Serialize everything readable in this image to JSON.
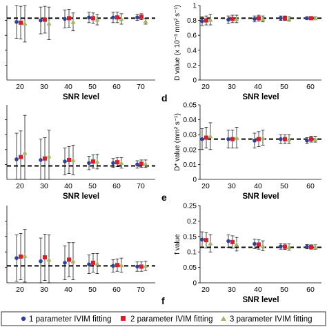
{
  "colors": {
    "series1": "#2e3f9e",
    "series2": "#d81f26",
    "series3": "#a8b66a",
    "axis": "#000000",
    "reference": "#000000"
  },
  "legend": {
    "items": [
      {
        "label": "1 parameter IVIM fitting",
        "marker": "circle",
        "color": "#2e3f9e"
      },
      {
        "label": "2 parameter IVIM fitting",
        "marker": "square",
        "color": "#d81f26"
      },
      {
        "label": "3 parameter IVIM fitting",
        "marker": "triangle",
        "color": "#a8b66a"
      }
    ]
  },
  "chart_data": [
    {
      "type": "scatter",
      "panel_letter": "",
      "xlabel": "SNR level",
      "ylabel": "",
      "ylabel_latex": false,
      "categories": [
        "20",
        "30",
        "40",
        "50",
        "60",
        "70"
      ],
      "ylim": [
        0,
        1
      ],
      "yticks": [],
      "ytick_labels": [],
      "reference_line": 0.83,
      "series": [
        {
          "name": "1 parameter IVIM fitting",
          "values": [
            0.78,
            0.8,
            0.82,
            0.84,
            0.84,
            0.84
          ],
          "err": [
            0.22,
            0.18,
            0.12,
            0.07,
            0.07,
            0.04
          ]
        },
        {
          "name": "2 parameter IVIM fitting",
          "values": [
            0.77,
            0.81,
            0.83,
            0.83,
            0.84,
            0.85
          ],
          "err": [
            0.22,
            0.18,
            0.12,
            0.07,
            0.07,
            0.04
          ]
        },
        {
          "name": "3 parameter IVIM fitting",
          "values": [
            0.76,
            0.76,
            0.78,
            0.81,
            0.82,
            0.79
          ],
          "err": [
            0.25,
            0.22,
            0.12,
            0.07,
            0.07,
            0.04
          ]
        }
      ]
    },
    {
      "type": "scatter",
      "panel_letter": "d",
      "xlabel": "SNR level",
      "ylabel": "D value (x 10⁻³ mm² s⁻¹)",
      "categories": [
        "20",
        "30",
        "40",
        "50",
        "60"
      ],
      "ylim": [
        0,
        1
      ],
      "yticks": [
        0,
        0.2,
        0.4,
        0.6,
        0.8,
        1
      ],
      "ytick_labels": [
        "0",
        "0.2",
        "0.4",
        "0.6",
        "0.8",
        "1"
      ],
      "reference_line": 0.83,
      "series": [
        {
          "name": "1 parameter IVIM fitting",
          "values": [
            0.79,
            0.81,
            0.82,
            0.83,
            0.83
          ],
          "err": [
            0.06,
            0.05,
            0.04,
            0.03,
            0.02
          ]
        },
        {
          "name": "2 parameter IVIM fitting",
          "values": [
            0.8,
            0.82,
            0.83,
            0.83,
            0.83
          ],
          "err": [
            0.06,
            0.05,
            0.04,
            0.03,
            0.02
          ]
        },
        {
          "name": "3 parameter IVIM fitting",
          "values": [
            0.81,
            0.82,
            0.82,
            0.82,
            0.83
          ],
          "err": [
            0.07,
            0.05,
            0.04,
            0.03,
            0.02
          ]
        }
      ]
    },
    {
      "type": "scatter",
      "panel_letter": "",
      "xlabel": "SNR level",
      "ylabel": "",
      "categories": [
        "20",
        "30",
        "40",
        "50",
        "60",
        "70"
      ],
      "ylim": [
        0,
        1
      ],
      "yticks": [],
      "ytick_labels": [],
      "reference_line": 0.18,
      "series": [
        {
          "name": "1 parameter IVIM fitting",
          "values": [
            0.27,
            0.26,
            0.24,
            0.22,
            0.22,
            0.2
          ],
          "err": [
            0.35,
            0.28,
            0.18,
            0.09,
            0.06,
            0.05
          ]
        },
        {
          "name": "2 parameter IVIM fitting",
          "values": [
            0.3,
            0.28,
            0.26,
            0.24,
            0.23,
            0.21
          ],
          "err": [
            0.35,
            0.28,
            0.18,
            0.09,
            0.06,
            0.05
          ]
        },
        {
          "name": "3 parameter IVIM fitting",
          "values": [
            0.36,
            0.31,
            0.26,
            0.24,
            0.22,
            0.21
          ],
          "err": [
            0.5,
            0.35,
            0.2,
            0.1,
            0.07,
            0.05
          ]
        }
      ]
    },
    {
      "type": "scatter",
      "panel_letter": "e",
      "xlabel": "SNR level",
      "ylabel": "D* value (mm² s⁻¹)",
      "categories": [
        "20",
        "30",
        "40",
        "50",
        "60"
      ],
      "ylim": [
        0,
        0.05
      ],
      "yticks": [
        0,
        0.01,
        0.02,
        0.03,
        0.04,
        0.05
      ],
      "ytick_labels": [
        "0",
        "0.01",
        "0.02",
        "0.03",
        "0.04",
        "0.05"
      ],
      "reference_line": 0.027,
      "series": [
        {
          "name": "1 parameter IVIM fitting",
          "values": [
            0.027,
            0.027,
            0.026,
            0.027,
            0.026
          ],
          "err": [
            0.007,
            0.006,
            0.005,
            0.003,
            0.002
          ]
        },
        {
          "name": "2 parameter IVIM fitting",
          "values": [
            0.028,
            0.027,
            0.027,
            0.027,
            0.027
          ],
          "err": [
            0.007,
            0.006,
            0.005,
            0.003,
            0.002
          ]
        },
        {
          "name": "3 parameter IVIM fitting",
          "values": [
            0.029,
            0.028,
            0.028,
            0.027,
            0.027
          ],
          "err": [
            0.009,
            0.007,
            0.005,
            0.003,
            0.002
          ]
        }
      ]
    },
    {
      "type": "scatter",
      "panel_letter": "",
      "xlabel": "",
      "ylabel": "",
      "categories": [
        "20",
        "30",
        "40",
        "50",
        "60",
        "70"
      ],
      "ylim": [
        0,
        1
      ],
      "yticks": [],
      "ytick_labels": [],
      "reference_line": 0.22,
      "series": [
        {
          "name": "1 parameter IVIM fitting",
          "values": [
            0.32,
            0.28,
            0.26,
            0.24,
            0.22,
            0.21
          ],
          "err": [
            0.3,
            0.3,
            0.22,
            0.12,
            0.08,
            0.06
          ]
        },
        {
          "name": "2 parameter IVIM fitting",
          "values": [
            0.34,
            0.33,
            0.3,
            0.26,
            0.23,
            0.21
          ],
          "err": [
            0.3,
            0.3,
            0.22,
            0.12,
            0.08,
            0.06
          ]
        },
        {
          "name": "3 parameter IVIM fitting",
          "values": [
            0.35,
            0.3,
            0.28,
            0.25,
            0.23,
            0.22
          ],
          "err": [
            0.34,
            0.32,
            0.24,
            0.13,
            0.09,
            0.06
          ]
        }
      ]
    },
    {
      "type": "scatter",
      "panel_letter": "f",
      "xlabel": "SNR level",
      "ylabel": "f value",
      "categories": [
        "20",
        "30",
        "40",
        "50",
        "60"
      ],
      "ylim": [
        0,
        0.25
      ],
      "yticks": [
        0,
        0.05,
        0.1,
        0.15,
        0.2,
        0.25
      ],
      "ytick_labels": [
        "0",
        "0.05",
        "0.1",
        "0.15",
        "0.2",
        "0.25"
      ],
      "reference_line": 0.115,
      "series": [
        {
          "name": "1 parameter IVIM fitting",
          "values": [
            0.14,
            0.135,
            0.126,
            0.118,
            0.117
          ],
          "err": [
            0.025,
            0.02,
            0.015,
            0.009,
            0.007
          ]
        },
        {
          "name": "2 parameter IVIM fitting",
          "values": [
            0.138,
            0.132,
            0.124,
            0.117,
            0.116
          ],
          "err": [
            0.025,
            0.02,
            0.015,
            0.009,
            0.007
          ]
        },
        {
          "name": "3 parameter IVIM fitting",
          "values": [
            0.128,
            0.125,
            0.12,
            0.116,
            0.116
          ],
          "err": [
            0.028,
            0.022,
            0.016,
            0.01,
            0.007
          ]
        }
      ]
    }
  ]
}
